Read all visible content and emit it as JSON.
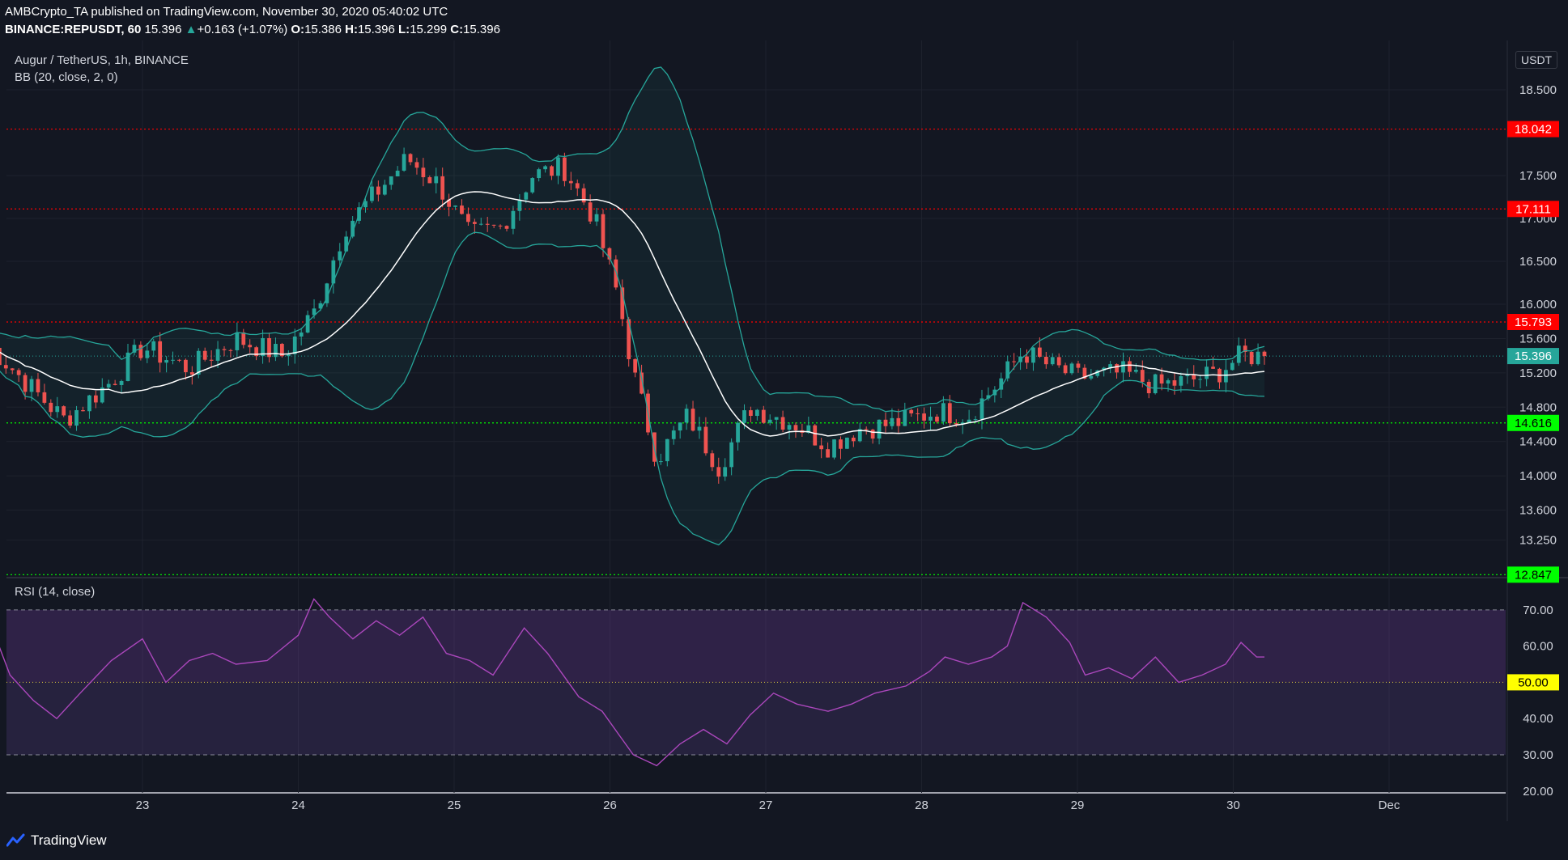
{
  "header": {
    "line1": "AMBCrypto_TA published on TradingView.com, November 30, 2020 05:40:02 UTC",
    "symbol": "BINANCE:REPUSDT, 60",
    "price": "15.396",
    "change": "+0.163 (+1.07%)",
    "open_label": "O:",
    "open": "15.386",
    "high_label": "H:",
    "high": "15.396",
    "low_label": "L:",
    "low": "15.299",
    "close_label": "C:",
    "close": "15.396"
  },
  "pane_labels": {
    "pair": "Augur / TetherUS, 1h, BINANCE",
    "bb": "BB (20, close, 2, 0)",
    "rsi": "RSI (14, close)"
  },
  "axis": {
    "unit": "USDT"
  },
  "footer": {
    "brand": "TradingView"
  },
  "colors": {
    "background": "#131722",
    "up": "#26a69a",
    "down": "#ef5350",
    "bb_band": "#26a69a",
    "basis": "#ffffff",
    "rsi_line": "#ab47bc",
    "resistance": "#ff0000",
    "support": "#00ff00"
  },
  "chart_data": [
    {
      "type": "candlestick",
      "title": "Augur / TetherUS, 1h, BINANCE",
      "x_ticks": [
        "23",
        "24",
        "25",
        "26",
        "27",
        "28",
        "29",
        "30",
        "Dec"
      ],
      "y_ticks": [
        13.25,
        13.6,
        14.0,
        14.4,
        14.8,
        15.2,
        15.6,
        16.0,
        16.5,
        17.0,
        17.5,
        18.5
      ],
      "ylim": [
        12.85,
        19.0
      ],
      "last_price": 15.396,
      "horizontal_levels": [
        {
          "value": 18.042,
          "color": "#ff0000",
          "kind": "resistance"
        },
        {
          "value": 17.111,
          "color": "#ff0000",
          "kind": "resistance"
        },
        {
          "value": 15.793,
          "color": "#ff0000",
          "kind": "resistance"
        },
        {
          "value": 14.616,
          "color": "#00ff00",
          "kind": "support"
        },
        {
          "value": 12.847,
          "color": "#00ff00",
          "kind": "support"
        }
      ],
      "price_path": [
        [
          22.0,
          15.55
        ],
        [
          22.3,
          15.0
        ],
        [
          22.5,
          14.65
        ],
        [
          22.8,
          15.1
        ],
        [
          23.0,
          15.5
        ],
        [
          23.3,
          15.25
        ],
        [
          23.6,
          15.6
        ],
        [
          23.9,
          15.4
        ],
        [
          24.1,
          15.9
        ],
        [
          24.3,
          16.9
        ],
        [
          24.5,
          17.3
        ],
        [
          24.7,
          17.7
        ],
        [
          24.9,
          17.4
        ],
        [
          25.1,
          16.8
        ],
        [
          25.3,
          16.9
        ],
        [
          25.5,
          17.5
        ],
        [
          25.7,
          17.6
        ],
        [
          25.9,
          17.0
        ],
        [
          26.05,
          16.1
        ],
        [
          26.15,
          15.2
        ],
        [
          26.3,
          14.2
        ],
        [
          26.5,
          14.7
        ],
        [
          26.7,
          14.1
        ],
        [
          26.9,
          14.8
        ],
        [
          27.2,
          14.6
        ],
        [
          27.4,
          14.35
        ],
        [
          27.6,
          14.55
        ],
        [
          27.8,
          14.6
        ],
        [
          28.1,
          14.75
        ],
        [
          28.3,
          14.7
        ],
        [
          28.5,
          15.1
        ],
        [
          28.65,
          15.45
        ],
        [
          28.8,
          15.3
        ],
        [
          29.0,
          15.15
        ],
        [
          29.3,
          15.2
        ],
        [
          29.5,
          15.05
        ],
        [
          29.7,
          15.1
        ],
        [
          29.9,
          15.2
        ],
        [
          30.05,
          15.4
        ],
        [
          30.2,
          15.396
        ]
      ]
    },
    {
      "type": "line",
      "title": "RSI (14, close)",
      "y_ticks": [
        20,
        30,
        40,
        50,
        60,
        70
      ],
      "ylim": [
        19.5,
        78
      ],
      "levels": [
        30,
        50,
        70
      ],
      "points": [
        [
          22.0,
          69
        ],
        [
          22.15,
          52
        ],
        [
          22.3,
          45
        ],
        [
          22.45,
          40
        ],
        [
          22.6,
          47
        ],
        [
          22.8,
          56
        ],
        [
          23.0,
          62
        ],
        [
          23.15,
          50
        ],
        [
          23.3,
          56
        ],
        [
          23.45,
          58
        ],
        [
          23.6,
          55
        ],
        [
          23.8,
          56
        ],
        [
          24.0,
          63
        ],
        [
          24.1,
          73
        ],
        [
          24.2,
          68
        ],
        [
          24.35,
          62
        ],
        [
          24.5,
          67
        ],
        [
          24.65,
          63
        ],
        [
          24.8,
          68
        ],
        [
          24.95,
          58
        ],
        [
          25.1,
          56
        ],
        [
          25.25,
          52
        ],
        [
          25.45,
          65
        ],
        [
          25.6,
          58
        ],
        [
          25.8,
          46
        ],
        [
          25.95,
          42
        ],
        [
          26.05,
          36
        ],
        [
          26.15,
          30
        ],
        [
          26.3,
          27
        ],
        [
          26.45,
          33
        ],
        [
          26.6,
          37
        ],
        [
          26.75,
          33
        ],
        [
          26.9,
          41
        ],
        [
          27.05,
          47
        ],
        [
          27.2,
          44
        ],
        [
          27.4,
          42
        ],
        [
          27.55,
          44
        ],
        [
          27.7,
          47
        ],
        [
          27.9,
          49
        ],
        [
          28.05,
          53
        ],
        [
          28.15,
          57
        ],
        [
          28.3,
          55
        ],
        [
          28.45,
          57
        ],
        [
          28.55,
          60
        ],
        [
          28.65,
          72
        ],
        [
          28.8,
          68
        ],
        [
          28.95,
          61
        ],
        [
          29.05,
          52
        ],
        [
          29.2,
          54
        ],
        [
          29.35,
          51
        ],
        [
          29.5,
          57
        ],
        [
          29.65,
          50
        ],
        [
          29.8,
          52
        ],
        [
          29.95,
          55
        ],
        [
          30.05,
          61
        ],
        [
          30.15,
          57
        ],
        [
          30.2,
          57
        ]
      ]
    }
  ]
}
